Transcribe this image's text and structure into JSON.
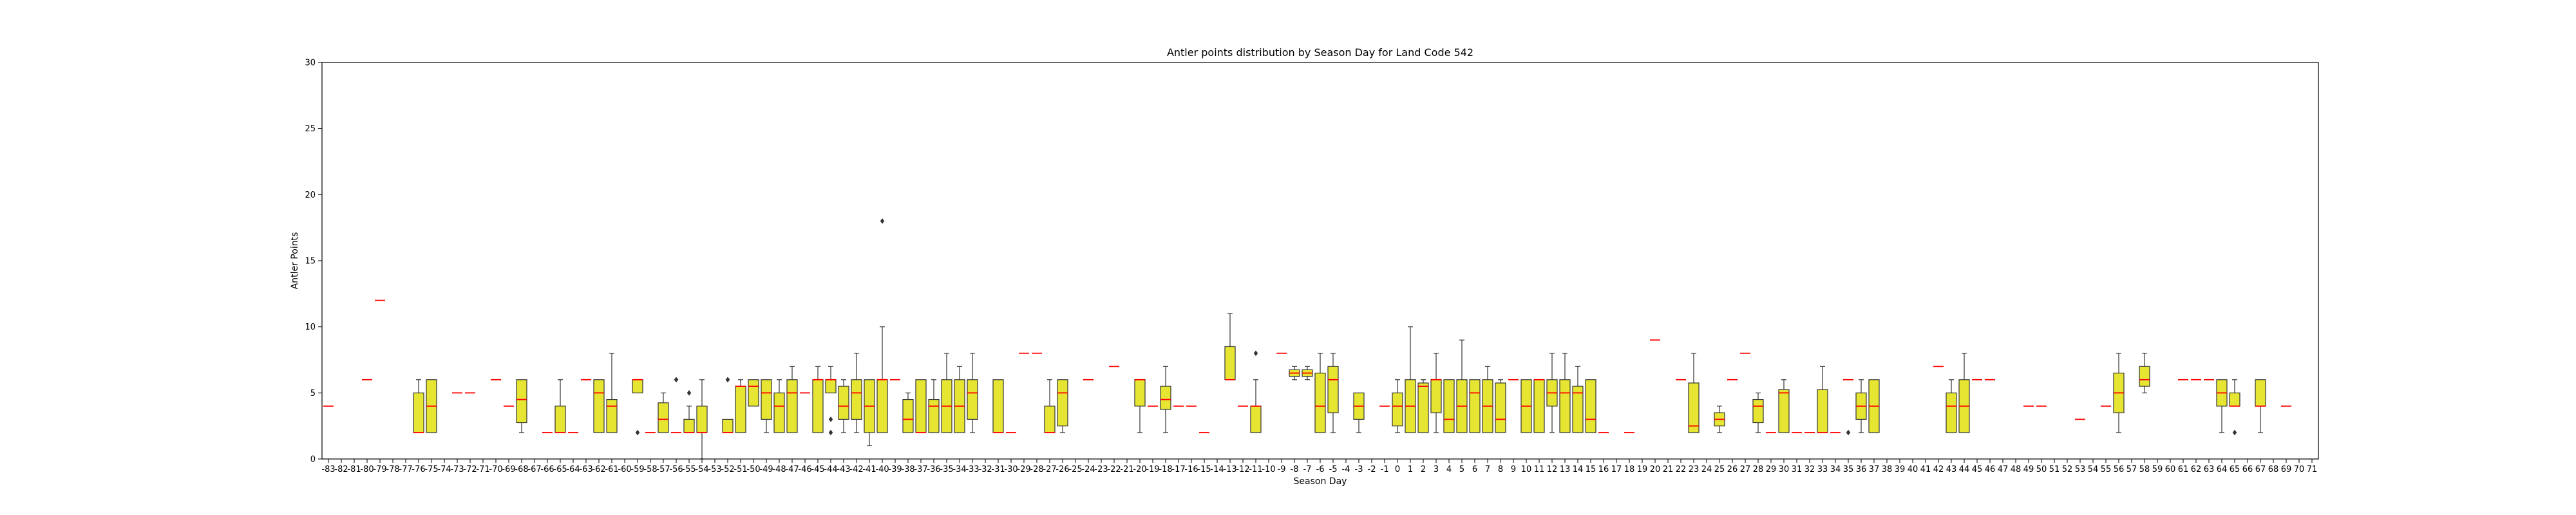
{
  "chart_data": {
    "type": "box",
    "title": "Antler points distribution by Season Day for Land Code 542",
    "xlabel": "Season Day",
    "ylabel": "Antler Points",
    "ylim": [
      0,
      30
    ],
    "yticks": [
      0,
      5,
      10,
      15,
      20,
      25,
      30
    ],
    "grid": false,
    "colors": {
      "box_fill": "#e6e632",
      "median": "#ff0000",
      "edge": "#333333",
      "axis": "#000000"
    },
    "x_range": [
      -83,
      71
    ],
    "boxes": [
      {
        "x": -83,
        "min": 4,
        "q1": 4,
        "median": 4,
        "q3": 4,
        "max": 4
      },
      {
        "x": -80,
        "min": 6,
        "q1": 6,
        "median": 6,
        "q3": 6,
        "max": 6
      },
      {
        "x": -79,
        "min": 12,
        "q1": 12,
        "median": 12,
        "q3": 12,
        "max": 12
      },
      {
        "x": -76,
        "min": 2,
        "q1": 2,
        "median": 2,
        "q3": 5,
        "max": 6
      },
      {
        "x": -75,
        "min": 2,
        "q1": 2,
        "median": 4,
        "q3": 6,
        "max": 6
      },
      {
        "x": -73,
        "min": 5,
        "q1": 5,
        "median": 5,
        "q3": 5,
        "max": 5
      },
      {
        "x": -72,
        "min": 5,
        "q1": 5,
        "median": 5,
        "q3": 5,
        "max": 5
      },
      {
        "x": -70,
        "min": 6,
        "q1": 6,
        "median": 6,
        "q3": 6,
        "max": 6
      },
      {
        "x": -69,
        "min": 4,
        "q1": 4,
        "median": 4,
        "q3": 4,
        "max": 4
      },
      {
        "x": -68,
        "min": 2,
        "q1": 2.75,
        "median": 4.5,
        "q3": 6,
        "max": 6
      },
      {
        "x": -66,
        "min": 2,
        "q1": 2,
        "median": 2,
        "q3": 2,
        "max": 2
      },
      {
        "x": -65,
        "min": 2,
        "q1": 2,
        "median": 2,
        "q3": 4,
        "max": 6
      },
      {
        "x": -64,
        "min": 2,
        "q1": 2,
        "median": 2,
        "q3": 2,
        "max": 2
      },
      {
        "x": -63,
        "min": 6,
        "q1": 6,
        "median": 6,
        "q3": 6,
        "max": 6
      },
      {
        "x": -62,
        "min": 2,
        "q1": 2,
        "median": 5,
        "q3": 6,
        "max": 6
      },
      {
        "x": -61,
        "min": 2,
        "q1": 2,
        "median": 4,
        "q3": 4.5,
        "max": 8
      },
      {
        "x": -59,
        "min": 5,
        "q1": 5,
        "median": 6,
        "q3": 6,
        "max": 6,
        "outliers": [
          2
        ]
      },
      {
        "x": -58,
        "min": 2,
        "q1": 2,
        "median": 2,
        "q3": 2,
        "max": 2
      },
      {
        "x": -57,
        "min": 2,
        "q1": 2,
        "median": 3,
        "q3": 4.25,
        "max": 5
      },
      {
        "x": -56,
        "min": 2,
        "q1": 2,
        "median": 2,
        "q3": 2,
        "max": 2,
        "outliers": [
          6
        ]
      },
      {
        "x": -55,
        "min": 2,
        "q1": 2,
        "median": 2,
        "q3": 3,
        "max": 4,
        "outliers": [
          5
        ]
      },
      {
        "x": -54,
        "min": 0,
        "q1": 2,
        "median": 2,
        "q3": 4,
        "max": 6
      },
      {
        "x": -52,
        "min": 2,
        "q1": 2,
        "median": 2,
        "q3": 3,
        "max": 3,
        "outliers": [
          6
        ]
      },
      {
        "x": -51,
        "min": 2,
        "q1": 2,
        "median": 5.5,
        "q3": 5.5,
        "max": 6
      },
      {
        "x": -50,
        "min": 4,
        "q1": 4,
        "median": 5.5,
        "q3": 6,
        "max": 6
      },
      {
        "x": -49,
        "min": 2,
        "q1": 3,
        "median": 5,
        "q3": 6,
        "max": 6
      },
      {
        "x": -48,
        "min": 2,
        "q1": 2,
        "median": 4,
        "q3": 5,
        "max": 6
      },
      {
        "x": -47,
        "min": 2,
        "q1": 2,
        "median": 5,
        "q3": 6,
        "max": 7
      },
      {
        "x": -46,
        "min": 5,
        "q1": 5,
        "median": 5,
        "q3": 5,
        "max": 5
      },
      {
        "x": -45,
        "min": 2,
        "q1": 2,
        "median": 6,
        "q3": 6,
        "max": 7
      },
      {
        "x": -44,
        "min": 5,
        "q1": 5,
        "median": 6,
        "q3": 6,
        "max": 7,
        "outliers": [
          2,
          3
        ]
      },
      {
        "x": -43,
        "min": 2,
        "q1": 3,
        "median": 4,
        "q3": 5.5,
        "max": 6
      },
      {
        "x": -42,
        "min": 2,
        "q1": 3,
        "median": 5,
        "q3": 6,
        "max": 8
      },
      {
        "x": -41,
        "min": 1,
        "q1": 2,
        "median": 4,
        "q3": 6,
        "max": 6
      },
      {
        "x": -40,
        "min": 2,
        "q1": 2,
        "median": 6,
        "q3": 6,
        "max": 10,
        "outliers": [
          18
        ]
      },
      {
        "x": -39,
        "min": 6,
        "q1": 6,
        "median": 6,
        "q3": 6,
        "max": 6
      },
      {
        "x": -38,
        "min": 2,
        "q1": 2,
        "median": 3,
        "q3": 4.5,
        "max": 5
      },
      {
        "x": -37,
        "min": 2,
        "q1": 2,
        "median": 2,
        "q3": 6,
        "max": 6
      },
      {
        "x": -36,
        "min": 2,
        "q1": 2,
        "median": 4,
        "q3": 4.5,
        "max": 6
      },
      {
        "x": -35,
        "min": 2,
        "q1": 2,
        "median": 4,
        "q3": 6,
        "max": 8
      },
      {
        "x": -34,
        "min": 2,
        "q1": 2,
        "median": 4,
        "q3": 6,
        "max": 7
      },
      {
        "x": -33,
        "min": 2,
        "q1": 3,
        "median": 5,
        "q3": 6,
        "max": 8
      },
      {
        "x": -31,
        "min": 2,
        "q1": 2,
        "median": 2,
        "q3": 6,
        "max": 6
      },
      {
        "x": -30,
        "min": 2,
        "q1": 2,
        "median": 2,
        "q3": 2,
        "max": 2
      },
      {
        "x": -29,
        "min": 8,
        "q1": 8,
        "median": 8,
        "q3": 8,
        "max": 8
      },
      {
        "x": -28,
        "min": 8,
        "q1": 8,
        "median": 8,
        "q3": 8,
        "max": 8
      },
      {
        "x": -27,
        "min": 2,
        "q1": 2,
        "median": 2,
        "q3": 4,
        "max": 6
      },
      {
        "x": -26,
        "min": 2,
        "q1": 2.5,
        "median": 5,
        "q3": 6,
        "max": 6
      },
      {
        "x": -24,
        "min": 6,
        "q1": 6,
        "median": 6,
        "q3": 6,
        "max": 6
      },
      {
        "x": -22,
        "min": 7,
        "q1": 7,
        "median": 7,
        "q3": 7,
        "max": 7
      },
      {
        "x": -20,
        "min": 2,
        "q1": 4,
        "median": 6,
        "q3": 6,
        "max": 6
      },
      {
        "x": -19,
        "min": 4,
        "q1": 4,
        "median": 4,
        "q3": 4,
        "max": 4
      },
      {
        "x": -18,
        "min": 2,
        "q1": 3.75,
        "median": 4.5,
        "q3": 5.5,
        "max": 7
      },
      {
        "x": -17,
        "min": 4,
        "q1": 4,
        "median": 4,
        "q3": 4,
        "max": 4
      },
      {
        "x": -16,
        "min": 4,
        "q1": 4,
        "median": 4,
        "q3": 4,
        "max": 4
      },
      {
        "x": -15,
        "min": 2,
        "q1": 2,
        "median": 2,
        "q3": 2,
        "max": 2
      },
      {
        "x": -13,
        "min": 6,
        "q1": 6,
        "median": 6,
        "q3": 8.5,
        "max": 11
      },
      {
        "x": -12,
        "min": 4,
        "q1": 4,
        "median": 4,
        "q3": 4,
        "max": 4
      },
      {
        "x": -11,
        "min": 2,
        "q1": 2,
        "median": 4,
        "q3": 4,
        "max": 6,
        "outliers": [
          8
        ]
      },
      {
        "x": -9,
        "min": 8,
        "q1": 8,
        "median": 8,
        "q3": 8,
        "max": 8
      },
      {
        "x": -8,
        "min": 6,
        "q1": 6.25,
        "median": 6.5,
        "q3": 6.75,
        "max": 7
      },
      {
        "x": -7,
        "min": 6,
        "q1": 6.25,
        "median": 6.5,
        "q3": 6.75,
        "max": 7
      },
      {
        "x": -6,
        "min": 2,
        "q1": 2,
        "median": 4,
        "q3": 6.5,
        "max": 8
      },
      {
        "x": -5,
        "min": 2,
        "q1": 3.5,
        "median": 6,
        "q3": 7,
        "max": 8
      },
      {
        "x": -3,
        "min": 2,
        "q1": 3,
        "median": 4,
        "q3": 5,
        "max": 5
      },
      {
        "x": -1,
        "min": 4,
        "q1": 4,
        "median": 4,
        "q3": 4,
        "max": 4
      },
      {
        "x": 0,
        "min": 2,
        "q1": 2.5,
        "median": 4,
        "q3": 5,
        "max": 6
      },
      {
        "x": 1,
        "min": 2,
        "q1": 2,
        "median": 4,
        "q3": 6,
        "max": 10
      },
      {
        "x": 2,
        "min": 2,
        "q1": 2,
        "median": 5.5,
        "q3": 5.75,
        "max": 6
      },
      {
        "x": 3,
        "min": 2,
        "q1": 3.5,
        "median": 6,
        "q3": 6,
        "max": 8
      },
      {
        "x": 4,
        "min": 2,
        "q1": 2,
        "median": 3,
        "q3": 6,
        "max": 6
      },
      {
        "x": 5,
        "min": 2,
        "q1": 2,
        "median": 4,
        "q3": 6,
        "max": 9
      },
      {
        "x": 6,
        "min": 2,
        "q1": 2,
        "median": 5,
        "q3": 6,
        "max": 6
      },
      {
        "x": 7,
        "min": 2,
        "q1": 2,
        "median": 4,
        "q3": 6,
        "max": 7
      },
      {
        "x": 8,
        "min": 2,
        "q1": 2,
        "median": 3,
        "q3": 5.75,
        "max": 6
      },
      {
        "x": 9,
        "min": 6,
        "q1": 6,
        "median": 6,
        "q3": 6,
        "max": 6
      },
      {
        "x": 10,
        "min": 2,
        "q1": 2,
        "median": 4,
        "q3": 6,
        "max": 6
      },
      {
        "x": 11,
        "min": 2,
        "q1": 2,
        "median": 6,
        "q3": 6,
        "max": 6
      },
      {
        "x": 12,
        "min": 2,
        "q1": 4,
        "median": 5,
        "q3": 6,
        "max": 8
      },
      {
        "x": 13,
        "min": 2,
        "q1": 2,
        "median": 5,
        "q3": 6,
        "max": 8
      },
      {
        "x": 14,
        "min": 2,
        "q1": 2,
        "median": 5,
        "q3": 5.5,
        "max": 7
      },
      {
        "x": 15,
        "min": 2,
        "q1": 2,
        "median": 3,
        "q3": 6,
        "max": 6
      },
      {
        "x": 16,
        "min": 2,
        "q1": 2,
        "median": 2,
        "q3": 2,
        "max": 2
      },
      {
        "x": 18,
        "min": 2,
        "q1": 2,
        "median": 2,
        "q3": 2,
        "max": 2
      },
      {
        "x": 20,
        "min": 9,
        "q1": 9,
        "median": 9,
        "q3": 9,
        "max": 9
      },
      {
        "x": 22,
        "min": 6,
        "q1": 6,
        "median": 6,
        "q3": 6,
        "max": 6
      },
      {
        "x": 23,
        "min": 2,
        "q1": 2,
        "median": 2.5,
        "q3": 5.75,
        "max": 8
      },
      {
        "x": 25,
        "min": 2,
        "q1": 2.5,
        "median": 3,
        "q3": 3.5,
        "max": 4
      },
      {
        "x": 26,
        "min": 6,
        "q1": 6,
        "median": 6,
        "q3": 6,
        "max": 6
      },
      {
        "x": 27,
        "min": 8,
        "q1": 8,
        "median": 8,
        "q3": 8,
        "max": 8
      },
      {
        "x": 28,
        "min": 2,
        "q1": 2.75,
        "median": 4,
        "q3": 4.5,
        "max": 5
      },
      {
        "x": 29,
        "min": 2,
        "q1": 2,
        "median": 2,
        "q3": 2,
        "max": 2
      },
      {
        "x": 30,
        "min": 2,
        "q1": 2,
        "median": 5,
        "q3": 5.25,
        "max": 6
      },
      {
        "x": 31,
        "min": 2,
        "q1": 2,
        "median": 2,
        "q3": 2,
        "max": 2
      },
      {
        "x": 32,
        "min": 2,
        "q1": 2,
        "median": 2,
        "q3": 2,
        "max": 2
      },
      {
        "x": 33,
        "min": 2,
        "q1": 2,
        "median": 2,
        "q3": 5.25,
        "max": 7
      },
      {
        "x": 34,
        "min": 2,
        "q1": 2,
        "median": 2,
        "q3": 2,
        "max": 2
      },
      {
        "x": 35,
        "min": 6,
        "q1": 6,
        "median": 6,
        "q3": 6,
        "max": 6,
        "outliers": [
          2
        ]
      },
      {
        "x": 36,
        "min": 2,
        "q1": 3,
        "median": 4,
        "q3": 5,
        "max": 6
      },
      {
        "x": 37,
        "min": 2,
        "q1": 2,
        "median": 4,
        "q3": 6,
        "max": 6
      },
      {
        "x": 42,
        "min": 7,
        "q1": 7,
        "median": 7,
        "q3": 7,
        "max": 7
      },
      {
        "x": 43,
        "min": 2,
        "q1": 2,
        "median": 4,
        "q3": 5,
        "max": 6
      },
      {
        "x": 44,
        "min": 2,
        "q1": 2,
        "median": 4,
        "q3": 6,
        "max": 8
      },
      {
        "x": 45,
        "min": 6,
        "q1": 6,
        "median": 6,
        "q3": 6,
        "max": 6
      },
      {
        "x": 46,
        "min": 6,
        "q1": 6,
        "median": 6,
        "q3": 6,
        "max": 6
      },
      {
        "x": 49,
        "min": 4,
        "q1": 4,
        "median": 4,
        "q3": 4,
        "max": 4
      },
      {
        "x": 50,
        "min": 4,
        "q1": 4,
        "median": 4,
        "q3": 4,
        "max": 4
      },
      {
        "x": 53,
        "min": 3,
        "q1": 3,
        "median": 3,
        "q3": 3,
        "max": 3
      },
      {
        "x": 55,
        "min": 4,
        "q1": 4,
        "median": 4,
        "q3": 4,
        "max": 4
      },
      {
        "x": 56,
        "min": 2,
        "q1": 3.5,
        "median": 5,
        "q3": 6.5,
        "max": 8
      },
      {
        "x": 58,
        "min": 5,
        "q1": 5.5,
        "median": 6,
        "q3": 7,
        "max": 8
      },
      {
        "x": 61,
        "min": 6,
        "q1": 6,
        "median": 6,
        "q3": 6,
        "max": 6
      },
      {
        "x": 62,
        "min": 6,
        "q1": 6,
        "median": 6,
        "q3": 6,
        "max": 6
      },
      {
        "x": 63,
        "min": 6,
        "q1": 6,
        "median": 6,
        "q3": 6,
        "max": 6
      },
      {
        "x": 64,
        "min": 2,
        "q1": 4,
        "median": 5,
        "q3": 6,
        "max": 6
      },
      {
        "x": 65,
        "min": 4,
        "q1": 4,
        "median": 4,
        "q3": 5,
        "max": 6,
        "outliers": [
          2
        ]
      },
      {
        "x": 67,
        "min": 2,
        "q1": 4,
        "median": 4,
        "q3": 6,
        "max": 6
      },
      {
        "x": 69,
        "min": 4,
        "q1": 4,
        "median": 4,
        "q3": 4,
        "max": 4
      }
    ]
  }
}
